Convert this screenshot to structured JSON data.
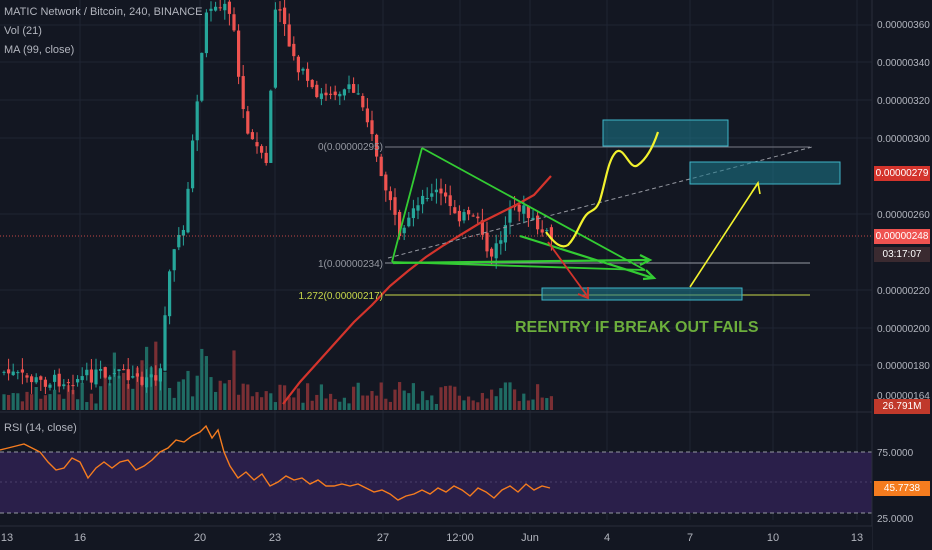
{
  "header": {
    "symbol_line": "MATIC Network / Bitcoin, 240, BINANCE",
    "vol_label": "Vol (21)",
    "ma_label": "MA (99, close)",
    "rsi_label": "RSI (14, close)"
  },
  "price_axis": {
    "ticks": [
      "0.00000360",
      "0.00000340",
      "0.00000320",
      "0.00000300",
      "0.00000260",
      "0.00000220",
      "0.00000200",
      "0.00000180",
      "0.00000164"
    ],
    "target_label": "0.00000279",
    "current_label": "0.00000248",
    "countdown_label": "03:17:07",
    "partial_label": "0."
  },
  "volume_axis": {
    "label": "26.791M"
  },
  "rsi_axis": {
    "ticks": [
      "75.0000",
      "25.0000"
    ],
    "current_label": "45.7738"
  },
  "time_axis": {
    "labels": [
      "13",
      "16",
      "20",
      "23",
      "27",
      "12:00",
      "Jun",
      "4",
      "7",
      "10",
      "13"
    ]
  },
  "fib_labels": {
    "level_0": "0(0.00000295)",
    "level_1": "1(0.00000234)",
    "level_1272": "1.272(0.00000217)"
  },
  "annotation": {
    "text": "REENTRY IF BREAK OUT FAILS"
  },
  "colors": {
    "background": "#131722",
    "bull_candle": "#26a69a",
    "bear_candle": "#ef5350",
    "ma_line": "#d4342c",
    "rsi_line": "#f57c1f",
    "rsi_band": "#2a1f4a",
    "zone_fill": "#1b7a8c",
    "triangle_green": "#33cc33",
    "yellow_path": "#f2f22e",
    "annotation_green": "#6cae3c",
    "current_price": "#ef5350"
  }
}
